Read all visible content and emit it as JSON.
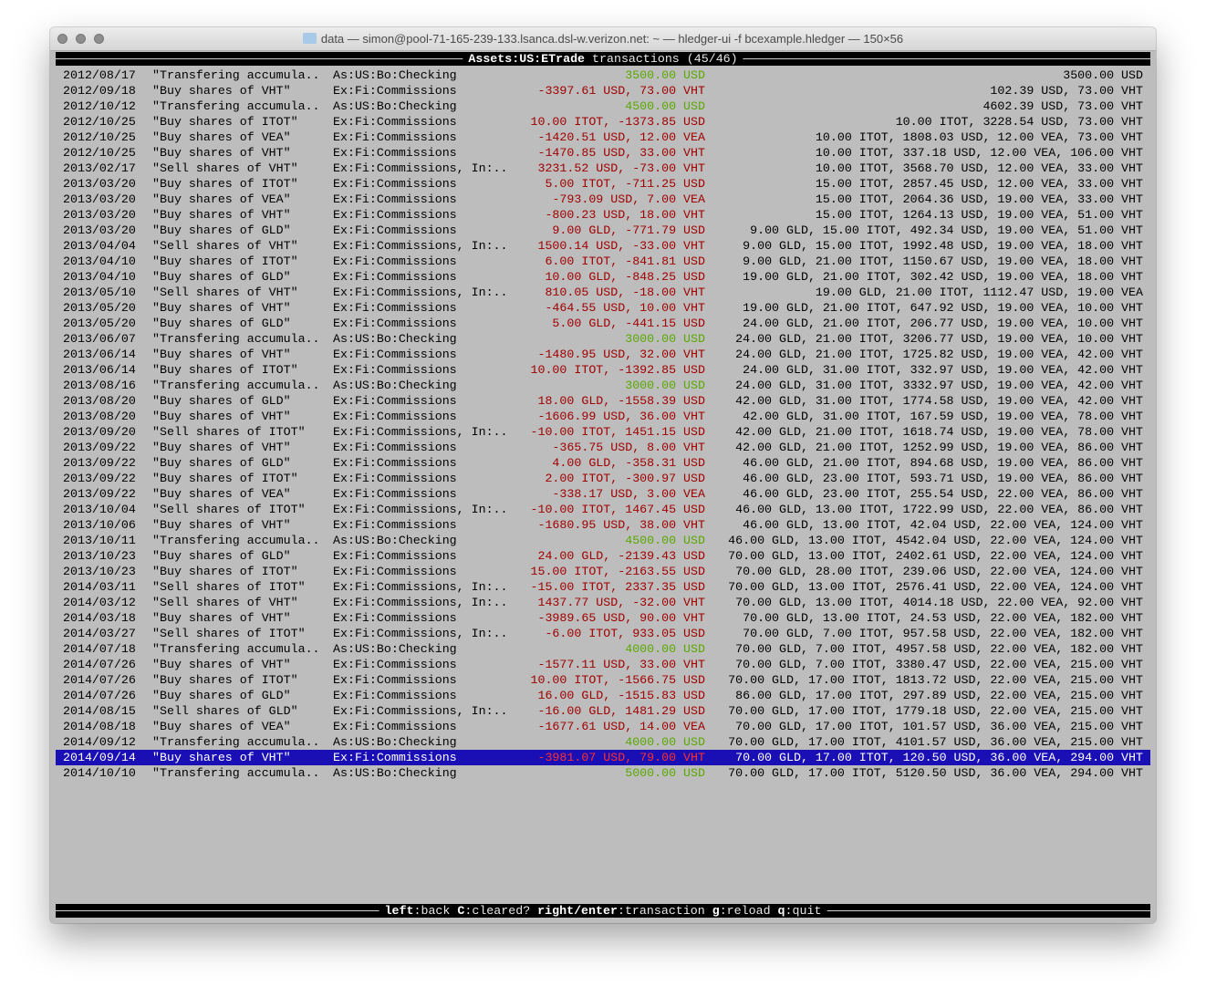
{
  "window": {
    "title": "data — simon@pool-71-165-239-133.lsanca.dsl-w.verizon.net: ~ — hledger-ui -f bcexample.hledger — 150×56"
  },
  "header": {
    "account": "Assets:US:ETrade",
    "label": "transactions",
    "count": "(45/46)"
  },
  "colors": {
    "increase": "#5aa800",
    "decrease": "#a00000",
    "selected_bg": "#1a0fb4",
    "selected_decrease": "#ff3030"
  },
  "selected_index": 44,
  "rows": [
    {
      "date": "2012/08/17",
      "desc": "\"Transfering accumula..",
      "account": "As:US:Bo:Checking",
      "change": "3500.00 USD",
      "type": "increase",
      "balance": "3500.00 USD"
    },
    {
      "date": "2012/09/18",
      "desc": "\"Buy shares of VHT\"",
      "account": "Ex:Fi:Commissions",
      "change": "-3397.61 USD, 73.00 VHT",
      "type": "decrease",
      "balance": "102.39 USD, 73.00 VHT"
    },
    {
      "date": "2012/10/12",
      "desc": "\"Transfering accumula..",
      "account": "As:US:Bo:Checking",
      "change": "4500.00 USD",
      "type": "increase",
      "balance": "4602.39 USD, 73.00 VHT"
    },
    {
      "date": "2012/10/25",
      "desc": "\"Buy shares of ITOT\"",
      "account": "Ex:Fi:Commissions",
      "change": "10.00 ITOT, -1373.85 USD",
      "type": "decrease",
      "balance": "10.00 ITOT, 3228.54 USD, 73.00 VHT"
    },
    {
      "date": "2012/10/25",
      "desc": "\"Buy shares of VEA\"",
      "account": "Ex:Fi:Commissions",
      "change": "-1420.51 USD, 12.00 VEA",
      "type": "decrease",
      "balance": "10.00 ITOT, 1808.03 USD, 12.00 VEA, 73.00 VHT"
    },
    {
      "date": "2012/10/25",
      "desc": "\"Buy shares of VHT\"",
      "account": "Ex:Fi:Commissions",
      "change": "-1470.85 USD, 33.00 VHT",
      "type": "decrease",
      "balance": "10.00 ITOT, 337.18 USD, 12.00 VEA, 106.00 VHT"
    },
    {
      "date": "2013/02/17",
      "desc": "\"Sell shares of VHT\"",
      "account": "Ex:Fi:Commissions, In:..",
      "change": "3231.52 USD, -73.00 VHT",
      "type": "decrease",
      "balance": "10.00 ITOT, 3568.70 USD, 12.00 VEA, 33.00 VHT"
    },
    {
      "date": "2013/03/20",
      "desc": "\"Buy shares of ITOT\"",
      "account": "Ex:Fi:Commissions",
      "change": "5.00 ITOT, -711.25 USD",
      "type": "decrease",
      "balance": "15.00 ITOT, 2857.45 USD, 12.00 VEA, 33.00 VHT"
    },
    {
      "date": "2013/03/20",
      "desc": "\"Buy shares of VEA\"",
      "account": "Ex:Fi:Commissions",
      "change": "-793.09 USD, 7.00 VEA",
      "type": "decrease",
      "balance": "15.00 ITOT, 2064.36 USD, 19.00 VEA, 33.00 VHT"
    },
    {
      "date": "2013/03/20",
      "desc": "\"Buy shares of VHT\"",
      "account": "Ex:Fi:Commissions",
      "change": "-800.23 USD, 18.00 VHT",
      "type": "decrease",
      "balance": "15.00 ITOT, 1264.13 USD, 19.00 VEA, 51.00 VHT"
    },
    {
      "date": "2013/03/20",
      "desc": "\"Buy shares of GLD\"",
      "account": "Ex:Fi:Commissions",
      "change": "9.00 GLD, -771.79 USD",
      "type": "decrease",
      "balance": "9.00 GLD, 15.00 ITOT, 492.34 USD, 19.00 VEA, 51.00 VHT"
    },
    {
      "date": "2013/04/04",
      "desc": "\"Sell shares of VHT\"",
      "account": "Ex:Fi:Commissions, In:..",
      "change": "1500.14 USD, -33.00 VHT",
      "type": "decrease",
      "balance": "9.00 GLD, 15.00 ITOT, 1992.48 USD, 19.00 VEA, 18.00 VHT"
    },
    {
      "date": "2013/04/10",
      "desc": "\"Buy shares of ITOT\"",
      "account": "Ex:Fi:Commissions",
      "change": "6.00 ITOT, -841.81 USD",
      "type": "decrease",
      "balance": "9.00 GLD, 21.00 ITOT, 1150.67 USD, 19.00 VEA, 18.00 VHT"
    },
    {
      "date": "2013/04/10",
      "desc": "\"Buy shares of GLD\"",
      "account": "Ex:Fi:Commissions",
      "change": "10.00 GLD, -848.25 USD",
      "type": "decrease",
      "balance": "19.00 GLD, 21.00 ITOT, 302.42 USD, 19.00 VEA, 18.00 VHT"
    },
    {
      "date": "2013/05/10",
      "desc": "\"Sell shares of VHT\"",
      "account": "Ex:Fi:Commissions, In:..",
      "change": "810.05 USD, -18.00 VHT",
      "type": "decrease",
      "balance": "19.00 GLD, 21.00 ITOT, 1112.47 USD, 19.00 VEA"
    },
    {
      "date": "2013/05/20",
      "desc": "\"Buy shares of VHT\"",
      "account": "Ex:Fi:Commissions",
      "change": "-464.55 USD, 10.00 VHT",
      "type": "decrease",
      "balance": "19.00 GLD, 21.00 ITOT, 647.92 USD, 19.00 VEA, 10.00 VHT"
    },
    {
      "date": "2013/05/20",
      "desc": "\"Buy shares of GLD\"",
      "account": "Ex:Fi:Commissions",
      "change": "5.00 GLD, -441.15 USD",
      "type": "decrease",
      "balance": "24.00 GLD, 21.00 ITOT, 206.77 USD, 19.00 VEA, 10.00 VHT"
    },
    {
      "date": "2013/06/07",
      "desc": "\"Transfering accumula..",
      "account": "As:US:Bo:Checking",
      "change": "3000.00 USD",
      "type": "increase",
      "balance": "24.00 GLD, 21.00 ITOT, 3206.77 USD, 19.00 VEA, 10.00 VHT"
    },
    {
      "date": "2013/06/14",
      "desc": "\"Buy shares of VHT\"",
      "account": "Ex:Fi:Commissions",
      "change": "-1480.95 USD, 32.00 VHT",
      "type": "decrease",
      "balance": "24.00 GLD, 21.00 ITOT, 1725.82 USD, 19.00 VEA, 42.00 VHT"
    },
    {
      "date": "2013/06/14",
      "desc": "\"Buy shares of ITOT\"",
      "account": "Ex:Fi:Commissions",
      "change": "10.00 ITOT, -1392.85 USD",
      "type": "decrease",
      "balance": "24.00 GLD, 31.00 ITOT, 332.97 USD, 19.00 VEA, 42.00 VHT"
    },
    {
      "date": "2013/08/16",
      "desc": "\"Transfering accumula..",
      "account": "As:US:Bo:Checking",
      "change": "3000.00 USD",
      "type": "increase",
      "balance": "24.00 GLD, 31.00 ITOT, 3332.97 USD, 19.00 VEA, 42.00 VHT"
    },
    {
      "date": "2013/08/20",
      "desc": "\"Buy shares of GLD\"",
      "account": "Ex:Fi:Commissions",
      "change": "18.00 GLD, -1558.39 USD",
      "type": "decrease",
      "balance": "42.00 GLD, 31.00 ITOT, 1774.58 USD, 19.00 VEA, 42.00 VHT"
    },
    {
      "date": "2013/08/20",
      "desc": "\"Buy shares of VHT\"",
      "account": "Ex:Fi:Commissions",
      "change": "-1606.99 USD, 36.00 VHT",
      "type": "decrease",
      "balance": "42.00 GLD, 31.00 ITOT, 167.59 USD, 19.00 VEA, 78.00 VHT"
    },
    {
      "date": "2013/09/20",
      "desc": "\"Sell shares of ITOT\"",
      "account": "Ex:Fi:Commissions, In:..",
      "change": "-10.00 ITOT, 1451.15 USD",
      "type": "decrease",
      "balance": "42.00 GLD, 21.00 ITOT, 1618.74 USD, 19.00 VEA, 78.00 VHT"
    },
    {
      "date": "2013/09/22",
      "desc": "\"Buy shares of VHT\"",
      "account": "Ex:Fi:Commissions",
      "change": "-365.75 USD, 8.00 VHT",
      "type": "decrease",
      "balance": "42.00 GLD, 21.00 ITOT, 1252.99 USD, 19.00 VEA, 86.00 VHT"
    },
    {
      "date": "2013/09/22",
      "desc": "\"Buy shares of GLD\"",
      "account": "Ex:Fi:Commissions",
      "change": "4.00 GLD, -358.31 USD",
      "type": "decrease",
      "balance": "46.00 GLD, 21.00 ITOT, 894.68 USD, 19.00 VEA, 86.00 VHT"
    },
    {
      "date": "2013/09/22",
      "desc": "\"Buy shares of ITOT\"",
      "account": "Ex:Fi:Commissions",
      "change": "2.00 ITOT, -300.97 USD",
      "type": "decrease",
      "balance": "46.00 GLD, 23.00 ITOT, 593.71 USD, 19.00 VEA, 86.00 VHT"
    },
    {
      "date": "2013/09/22",
      "desc": "\"Buy shares of VEA\"",
      "account": "Ex:Fi:Commissions",
      "change": "-338.17 USD, 3.00 VEA",
      "type": "decrease",
      "balance": "46.00 GLD, 23.00 ITOT, 255.54 USD, 22.00 VEA, 86.00 VHT"
    },
    {
      "date": "2013/10/04",
      "desc": "\"Sell shares of ITOT\"",
      "account": "Ex:Fi:Commissions, In:..",
      "change": "-10.00 ITOT, 1467.45 USD",
      "type": "decrease",
      "balance": "46.00 GLD, 13.00 ITOT, 1722.99 USD, 22.00 VEA, 86.00 VHT"
    },
    {
      "date": "2013/10/06",
      "desc": "\"Buy shares of VHT\"",
      "account": "Ex:Fi:Commissions",
      "change": "-1680.95 USD, 38.00 VHT",
      "type": "decrease",
      "balance": "46.00 GLD, 13.00 ITOT, 42.04 USD, 22.00 VEA, 124.00 VHT"
    },
    {
      "date": "2013/10/11",
      "desc": "\"Transfering accumula..",
      "account": "As:US:Bo:Checking",
      "change": "4500.00 USD",
      "type": "increase",
      "balance": "46.00 GLD, 13.00 ITOT, 4542.04 USD, 22.00 VEA, 124.00 VHT"
    },
    {
      "date": "2013/10/23",
      "desc": "\"Buy shares of GLD\"",
      "account": "Ex:Fi:Commissions",
      "change": "24.00 GLD, -2139.43 USD",
      "type": "decrease",
      "balance": "70.00 GLD, 13.00 ITOT, 2402.61 USD, 22.00 VEA, 124.00 VHT"
    },
    {
      "date": "2013/10/23",
      "desc": "\"Buy shares of ITOT\"",
      "account": "Ex:Fi:Commissions",
      "change": "15.00 ITOT, -2163.55 USD",
      "type": "decrease",
      "balance": "70.00 GLD, 28.00 ITOT, 239.06 USD, 22.00 VEA, 124.00 VHT"
    },
    {
      "date": "2014/03/11",
      "desc": "\"Sell shares of ITOT\"",
      "account": "Ex:Fi:Commissions, In:..",
      "change": "-15.00 ITOT, 2337.35 USD",
      "type": "decrease",
      "balance": "70.00 GLD, 13.00 ITOT, 2576.41 USD, 22.00 VEA, 124.00 VHT"
    },
    {
      "date": "2014/03/12",
      "desc": "\"Sell shares of VHT\"",
      "account": "Ex:Fi:Commissions, In:..",
      "change": "1437.77 USD, -32.00 VHT",
      "type": "decrease",
      "balance": "70.00 GLD, 13.00 ITOT, 4014.18 USD, 22.00 VEA, 92.00 VHT"
    },
    {
      "date": "2014/03/18",
      "desc": "\"Buy shares of VHT\"",
      "account": "Ex:Fi:Commissions",
      "change": "-3989.65 USD, 90.00 VHT",
      "type": "decrease",
      "balance": "70.00 GLD, 13.00 ITOT, 24.53 USD, 22.00 VEA, 182.00 VHT"
    },
    {
      "date": "2014/03/27",
      "desc": "\"Sell shares of ITOT\"",
      "account": "Ex:Fi:Commissions, In:..",
      "change": "-6.00 ITOT, 933.05 USD",
      "type": "decrease",
      "balance": "70.00 GLD, 7.00 ITOT, 957.58 USD, 22.00 VEA, 182.00 VHT"
    },
    {
      "date": "2014/07/18",
      "desc": "\"Transfering accumula..",
      "account": "As:US:Bo:Checking",
      "change": "4000.00 USD",
      "type": "increase",
      "balance": "70.00 GLD, 7.00 ITOT, 4957.58 USD, 22.00 VEA, 182.00 VHT"
    },
    {
      "date": "2014/07/26",
      "desc": "\"Buy shares of VHT\"",
      "account": "Ex:Fi:Commissions",
      "change": "-1577.11 USD, 33.00 VHT",
      "type": "decrease",
      "balance": "70.00 GLD, 7.00 ITOT, 3380.47 USD, 22.00 VEA, 215.00 VHT"
    },
    {
      "date": "2014/07/26",
      "desc": "\"Buy shares of ITOT\"",
      "account": "Ex:Fi:Commissions",
      "change": "10.00 ITOT, -1566.75 USD",
      "type": "decrease",
      "balance": "70.00 GLD, 17.00 ITOT, 1813.72 USD, 22.00 VEA, 215.00 VHT"
    },
    {
      "date": "2014/07/26",
      "desc": "\"Buy shares of GLD\"",
      "account": "Ex:Fi:Commissions",
      "change": "16.00 GLD, -1515.83 USD",
      "type": "decrease",
      "balance": "86.00 GLD, 17.00 ITOT, 297.89 USD, 22.00 VEA, 215.00 VHT"
    },
    {
      "date": "2014/08/15",
      "desc": "\"Sell shares of GLD\"",
      "account": "Ex:Fi:Commissions, In:..",
      "change": "-16.00 GLD, 1481.29 USD",
      "type": "decrease",
      "balance": "70.00 GLD, 17.00 ITOT, 1779.18 USD, 22.00 VEA, 215.00 VHT"
    },
    {
      "date": "2014/08/18",
      "desc": "\"Buy shares of VEA\"",
      "account": "Ex:Fi:Commissions",
      "change": "-1677.61 USD, 14.00 VEA",
      "type": "decrease",
      "balance": "70.00 GLD, 17.00 ITOT, 101.57 USD, 36.00 VEA, 215.00 VHT"
    },
    {
      "date": "2014/09/12",
      "desc": "\"Transfering accumula..",
      "account": "As:US:Bo:Checking",
      "change": "4000.00 USD",
      "type": "increase",
      "balance": "70.00 GLD, 17.00 ITOT, 4101.57 USD, 36.00 VEA, 215.00 VHT"
    },
    {
      "date": "2014/09/14",
      "desc": "\"Buy shares of VHT\"",
      "account": "Ex:Fi:Commissions",
      "change": "-3981.07 USD, 79.00 VHT",
      "type": "decrease",
      "balance": "70.00 GLD, 17.00 ITOT, 120.50 USD, 36.00 VEA, 294.00 VHT"
    },
    {
      "date": "2014/10/10",
      "desc": "\"Transfering accumula..",
      "account": "As:US:Bo:Checking",
      "change": "5000.00 USD",
      "type": "increase",
      "balance": "70.00 GLD, 17.00 ITOT, 5120.50 USD, 36.00 VEA, 294.00 VHT"
    }
  ],
  "footer": {
    "keys": [
      {
        "key": "left",
        "action": "back"
      },
      {
        "key": "C",
        "action": "cleared?"
      },
      {
        "key": "right/enter",
        "action": "transaction"
      },
      {
        "key": "g",
        "action": "reload"
      },
      {
        "key": "q",
        "action": "quit"
      }
    ]
  }
}
